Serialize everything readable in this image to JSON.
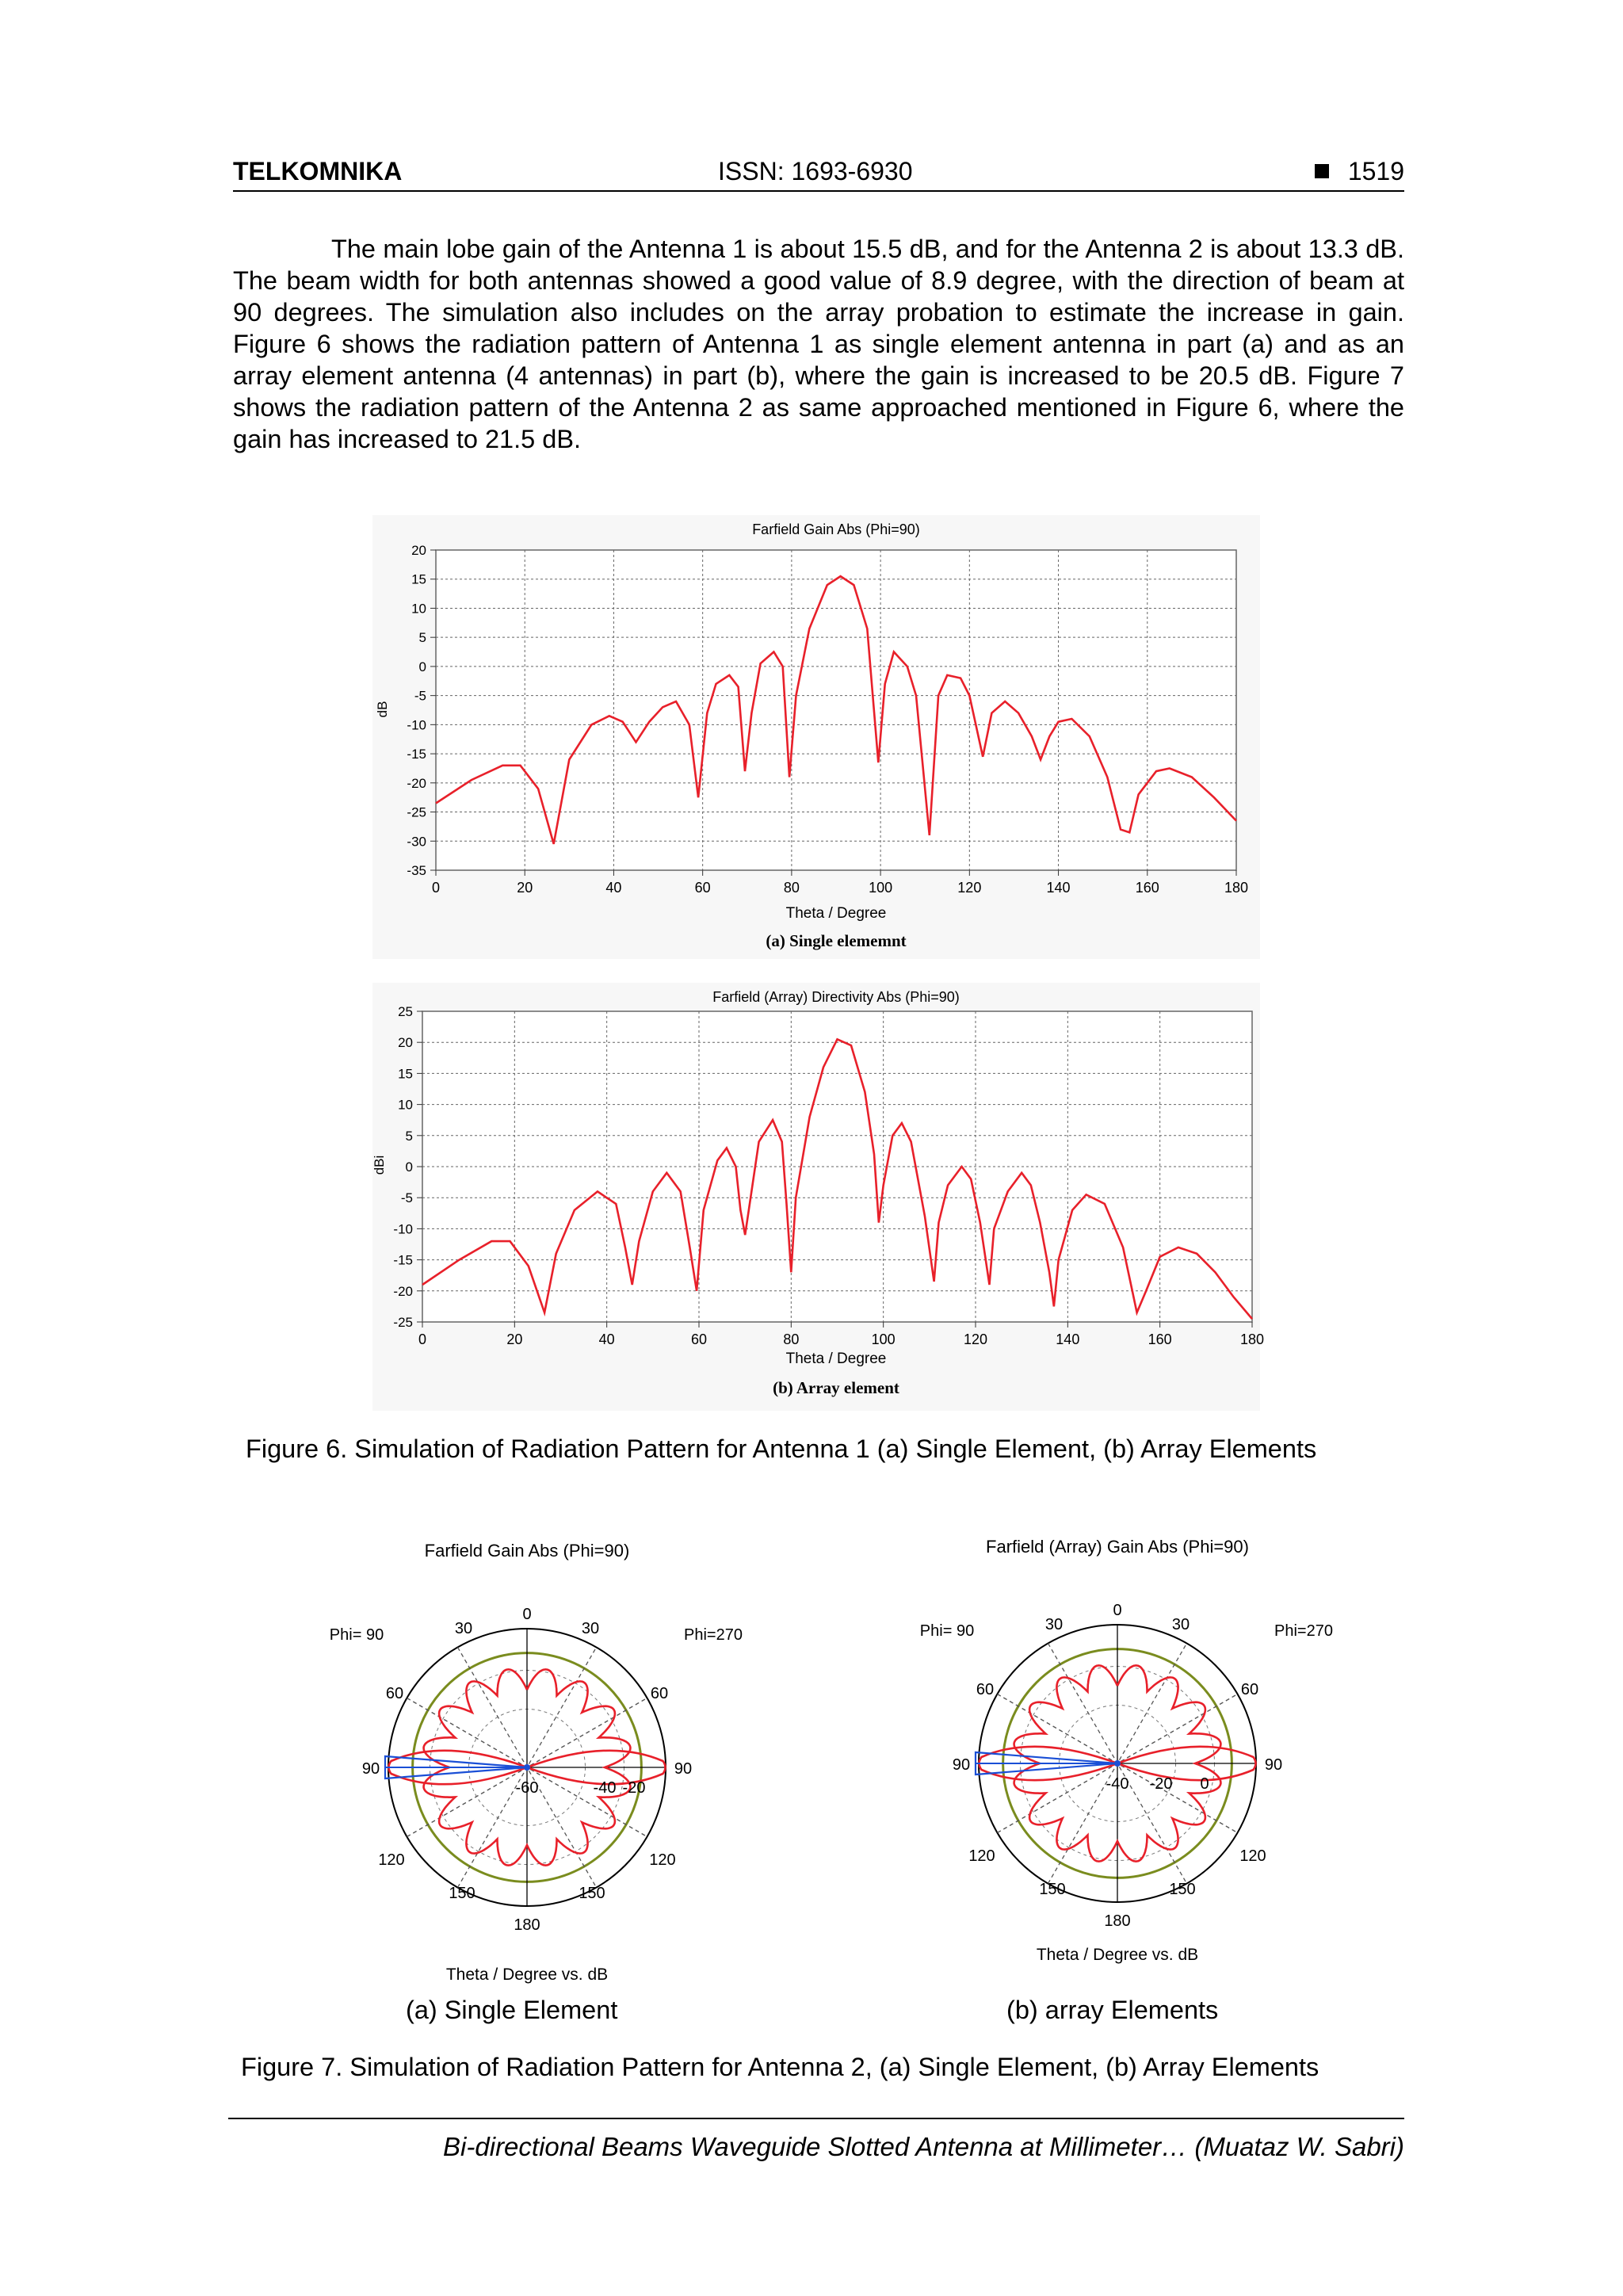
{
  "header": {
    "journal": "TELKOMNIKA",
    "issn": "ISSN: 1693-6930",
    "page": "1519"
  },
  "body_paragraph": "The main lobe gain of the Antenna 1 is about 15.5 dB, and for the Antenna 2 is about 13.3 dB. The beam width for both antennas showed a good value of 8.9 degree, with the direction of beam at 90 degrees. The simulation also includes on the array probation to estimate the increase in gain. Figure 6 shows the radiation pattern of Antenna 1 as single element antenna in part (a) and as an array element antenna (4 antennas) in part (b), where the gain is increased to be 20.5 dB. Figure 7 shows the radiation pattern of the Antenna 2 as same approached mentioned in Figure 6, where the gain has increased to 21.5 dB.",
  "figure6": {
    "caption": "Figure 6. Simulation of Radiation Pattern for Antenna 1 (a) Single Element, (b) Array Elements",
    "a_label": "(a) Single elememnt",
    "b_label": "(b) Array element"
  },
  "figure7": {
    "caption": "Figure 7. Simulation of Radiation Pattern for Antenna 2, (a) Single Element, (b) Array Elements",
    "a_label": "(a) Single Element",
    "b_label": "(b) array Elements"
  },
  "footer": {
    "running_title": "Bi-directional Beams Waveguide Slotted Antenna at Millimeter… (Muataz W. Sabri)"
  },
  "colors": {
    "curve": "#e8202a",
    "ring": "#7a8c1e",
    "beam": "#1a4fd6"
  },
  "chart_data": [
    {
      "type": "line",
      "title": "Farfield Gain Abs (Phi=90)",
      "xlabel": "Theta / Degree",
      "ylabel": "dB",
      "xlim": [
        0,
        180
      ],
      "ylim": [
        -35,
        20
      ],
      "xticks": [
        0,
        20,
        40,
        60,
        80,
        100,
        120,
        140,
        160,
        180
      ],
      "yticks": [
        20,
        15,
        10,
        5,
        0,
        -5,
        -10,
        -15,
        -20,
        -25,
        -30,
        -35
      ],
      "grid": true,
      "series": [
        {
          "points": [
            [
              0,
              -23.5
            ],
            [
              8,
              -19.5
            ],
            [
              15,
              -17
            ],
            [
              19,
              -17
            ],
            [
              23,
              -21
            ],
            [
              26.5,
              -30.5
            ],
            [
              30,
              -16
            ],
            [
              35,
              -10
            ],
            [
              39,
              -8.5
            ],
            [
              42,
              -9.5
            ],
            [
              45,
              -13
            ],
            [
              48,
              -9.5
            ],
            [
              51,
              -7
            ],
            [
              54,
              -6
            ],
            [
              57,
              -10
            ],
            [
              59,
              -22.5
            ],
            [
              61,
              -8
            ],
            [
              63,
              -3
            ],
            [
              66,
              -1.5
            ],
            [
              68,
              -3.5
            ],
            [
              69.5,
              -18
            ],
            [
              71,
              -8
            ],
            [
              73,
              0.5
            ],
            [
              76,
              2.5
            ],
            [
              78,
              0
            ],
            [
              79.5,
              -19
            ],
            [
              81,
              -5
            ],
            [
              84,
              6.5
            ],
            [
              88,
              14
            ],
            [
              91,
              15.5
            ],
            [
              94,
              14
            ],
            [
              97,
              6.5
            ],
            [
              99.5,
              -16.5
            ],
            [
              101,
              -3
            ],
            [
              103,
              2.5
            ],
            [
              106,
              0
            ],
            [
              108,
              -5
            ],
            [
              111,
              -29
            ],
            [
              113,
              -5
            ],
            [
              115,
              -1.5
            ],
            [
              118,
              -2
            ],
            [
              120,
              -5
            ],
            [
              123,
              -15.5
            ],
            [
              125,
              -8
            ],
            [
              128,
              -6
            ],
            [
              131,
              -8
            ],
            [
              134,
              -12
            ],
            [
              136,
              -16
            ],
            [
              138,
              -12
            ],
            [
              140,
              -9.5
            ],
            [
              143,
              -9
            ],
            [
              147,
              -12
            ],
            [
              151,
              -19
            ],
            [
              154,
              -28
            ],
            [
              156,
              -28.5
            ],
            [
              158,
              -22
            ],
            [
              162,
              -18
            ],
            [
              165,
              -17.5
            ],
            [
              170,
              -19
            ],
            [
              175,
              -22.5
            ],
            [
              180,
              -26.5
            ]
          ]
        }
      ]
    },
    {
      "type": "line",
      "title": "Farfield (Array) Directivity Abs (Phi=90)",
      "xlabel": "Theta / Degree",
      "ylabel": "dBi",
      "xlim": [
        0,
        180
      ],
      "ylim": [
        -25,
        25
      ],
      "xticks": [
        0,
        20,
        40,
        60,
        80,
        100,
        120,
        140,
        160,
        180
      ],
      "yticks": [
        25,
        20,
        15,
        10,
        5,
        0,
        -5,
        -10,
        -15,
        -20,
        -25
      ],
      "grid": true,
      "series": [
        {
          "points": [
            [
              0,
              -19
            ],
            [
              8,
              -15
            ],
            [
              15,
              -12
            ],
            [
              19,
              -12
            ],
            [
              23,
              -16
            ],
            [
              26.5,
              -23.5
            ],
            [
              29,
              -14
            ],
            [
              33,
              -7
            ],
            [
              38,
              -4
            ],
            [
              42,
              -6
            ],
            [
              44,
              -13
            ],
            [
              45.5,
              -19
            ],
            [
              47,
              -12
            ],
            [
              50,
              -4
            ],
            [
              53,
              -1
            ],
            [
              56,
              -4
            ],
            [
              58,
              -13
            ],
            [
              59.5,
              -20
            ],
            [
              61,
              -7
            ],
            [
              64,
              1
            ],
            [
              66,
              3
            ],
            [
              68,
              0
            ],
            [
              69,
              -7
            ],
            [
              70,
              -11
            ],
            [
              71,
              -6
            ],
            [
              73,
              4
            ],
            [
              76,
              7.5
            ],
            [
              78,
              4
            ],
            [
              79,
              -6
            ],
            [
              80,
              -17
            ],
            [
              81,
              -5
            ],
            [
              84,
              8
            ],
            [
              87,
              16
            ],
            [
              90,
              20.5
            ],
            [
              93,
              19.5
            ],
            [
              96,
              12
            ],
            [
              98,
              2
            ],
            [
              99,
              -9
            ],
            [
              100,
              -3
            ],
            [
              102,
              5
            ],
            [
              104,
              7
            ],
            [
              106,
              4
            ],
            [
              109,
              -8
            ],
            [
              111,
              -18.5
            ],
            [
              112,
              -9
            ],
            [
              114,
              -3
            ],
            [
              117,
              0
            ],
            [
              119,
              -2
            ],
            [
              121,
              -9
            ],
            [
              123,
              -19
            ],
            [
              124,
              -10
            ],
            [
              127,
              -4
            ],
            [
              130,
              -1
            ],
            [
              132,
              -3
            ],
            [
              134,
              -9
            ],
            [
              136,
              -17
            ],
            [
              137,
              -22.5
            ],
            [
              138,
              -15
            ],
            [
              141,
              -7
            ],
            [
              144,
              -4.5
            ],
            [
              148,
              -6
            ],
            [
              152,
              -13
            ],
            [
              154,
              -20
            ],
            [
              155,
              -23.5
            ],
            [
              157,
              -20
            ],
            [
              160,
              -14.5
            ],
            [
              164,
              -13
            ],
            [
              168,
              -14
            ],
            [
              172,
              -17
            ],
            [
              176,
              -21
            ],
            [
              180,
              -24.5
            ]
          ]
        }
      ]
    },
    {
      "type": "polar",
      "title": "Farfield Gain Abs (Phi=90)",
      "axis_label": "Theta / Degree vs. dB",
      "angle_labels": [
        "0",
        "30",
        "30",
        "60",
        "60",
        "90",
        "90",
        "120",
        "120",
        "150",
        "150",
        "180"
      ],
      "side_labels": [
        "Phi= 90",
        "Phi=270"
      ],
      "radial_labels": [
        "-60",
        "-40",
        "-20"
      ],
      "main_lobe_db": 13.3,
      "beam_direction_deg": 90,
      "petals": 16
    },
    {
      "type": "polar",
      "title": "Farfield (Array) Gain Abs (Phi=90)",
      "axis_label": "Theta / Degree vs. dB",
      "angle_labels": [
        "0",
        "30",
        "30",
        "60",
        "60",
        "90",
        "90",
        "120",
        "120",
        "150",
        "150",
        "180"
      ],
      "side_labels": [
        "Phi= 90",
        "Phi=270"
      ],
      "radial_labels": [
        "-40",
        "-20",
        "0"
      ],
      "main_lobe_db": 21.5,
      "beam_direction_deg": 90,
      "petals": 16
    }
  ]
}
